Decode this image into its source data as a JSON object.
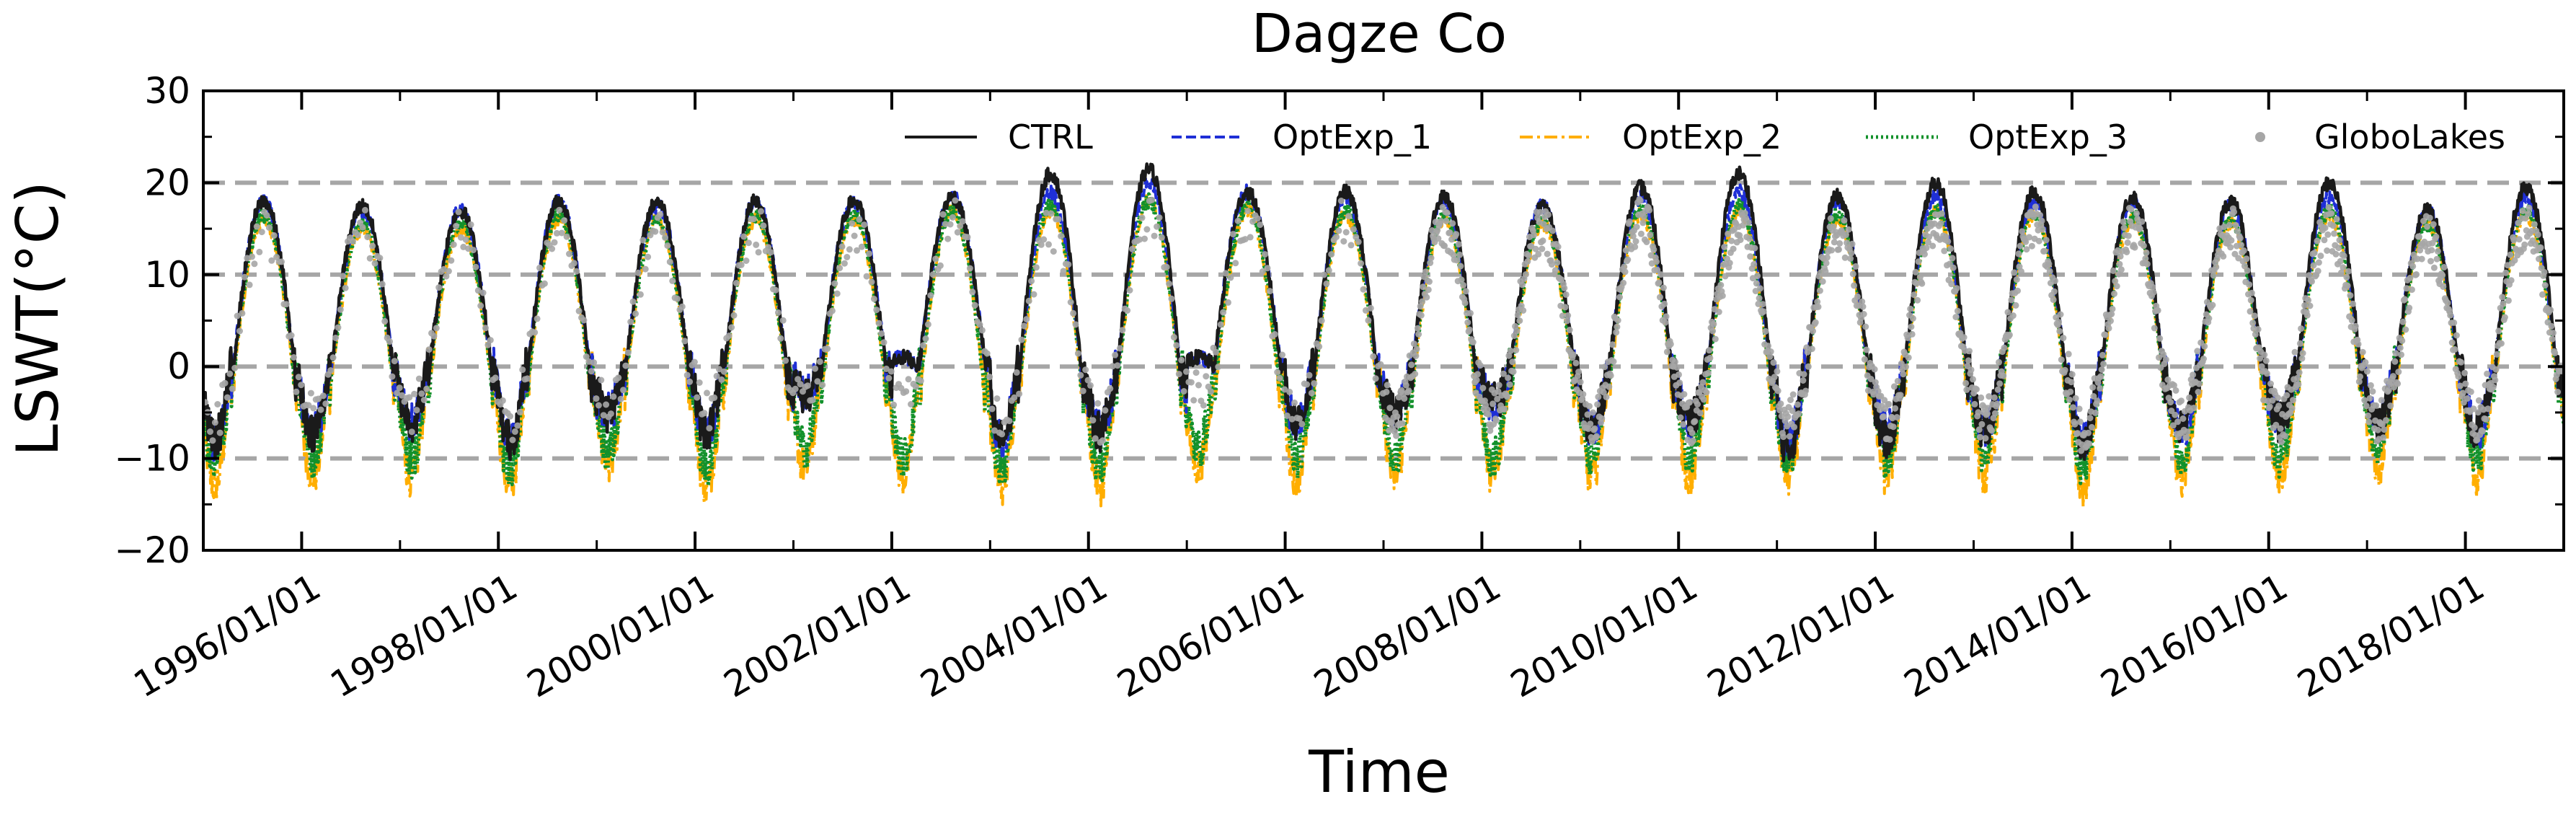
{
  "chart_data": {
    "type": "line",
    "title": "Dagze Co",
    "xlabel": "Time",
    "ylabel": "LSWT(°C)",
    "ylim": [
      -20,
      30
    ],
    "y_ticks": [
      "30",
      "20",
      "10",
      "0",
      "−10",
      "−20"
    ],
    "y_tick_values": [
      30,
      20,
      10,
      0,
      -10,
      -20
    ],
    "x_range_years": [
      1995.0,
      2019.0
    ],
    "x_ticks": [
      "1996/01/01",
      "1998/01/01",
      "2000/01/01",
      "2002/01/01",
      "2004/01/01",
      "2006/01/01",
      "2008/01/01",
      "2010/01/01",
      "2012/01/01",
      "2014/01/01",
      "2016/01/01",
      "2018/01/01"
    ],
    "x_tick_years": [
      1996,
      1998,
      2000,
      2002,
      2004,
      2006,
      2008,
      2010,
      2012,
      2014,
      2016,
      2018
    ],
    "reference_lines": [
      20,
      10,
      0,
      -10
    ],
    "legend": {
      "placement": "top",
      "entries": [
        {
          "label": "CTRL",
          "color": "#1a1a1a",
          "style": "solid"
        },
        {
          "label": "OptExp_1",
          "color": "#1f2fd6",
          "style": "dashed"
        },
        {
          "label": "OptExp_2",
          "color": "#ffae00",
          "style": "dashdot"
        },
        {
          "label": "OptExp_3",
          "color": "#12912b",
          "style": "dotted"
        },
        {
          "label": "GloboLakes",
          "color": "#a6a6a6",
          "style": "marker"
        }
      ]
    },
    "series": [
      {
        "name": "CTRL",
        "annual_peak": [
          18,
          17.5,
          17,
          18,
          18,
          18,
          18,
          18.5,
          21,
          21.5,
          19,
          19,
          18.5,
          17.5,
          19.5,
          21,
          18.5,
          20,
          19,
          18.5,
          18,
          20,
          17,
          19.5
        ],
        "annual_min": [
          -8,
          -7,
          -6,
          -8,
          -5,
          -7,
          -3,
          1,
          -8,
          -7,
          1,
          -6,
          -5,
          -4,
          -7,
          -6,
          -9,
          -8,
          -7,
          -8,
          -7,
          -6,
          -6,
          -7
        ]
      },
      {
        "name": "OptExp_1",
        "annual_peak": [
          18,
          17,
          17,
          18,
          17.5,
          18,
          18,
          18.5,
          19,
          20,
          19,
          18.5,
          18,
          17.5,
          18.5,
          19,
          18,
          18.5,
          18,
          18,
          17.5,
          18.5,
          17,
          18.5
        ],
        "annual_min": [
          -8,
          -7,
          -6,
          -8,
          -5,
          -7,
          -3,
          1,
          -8,
          -7,
          1,
          -6,
          -5,
          -4,
          -7,
          -6,
          -8,
          -7,
          -7,
          -8,
          -7,
          -6,
          -6,
          -7
        ]
      },
      {
        "name": "OptExp_2",
        "annual_peak": [
          16,
          15,
          15,
          16,
          16,
          16,
          16,
          17,
          17,
          18,
          17,
          16.5,
          16,
          15.5,
          16.5,
          17,
          16,
          17,
          16.5,
          16,
          15.5,
          16.5,
          15.5,
          16.5
        ],
        "annual_min": [
          -13,
          -12,
          -12,
          -13,
          -11,
          -13,
          -11,
          -12,
          -13,
          -13,
          -11,
          -12,
          -12,
          -12,
          -12,
          -12,
          -12,
          -12,
          -12,
          -13,
          -12,
          -12,
          -11,
          -12
        ]
      },
      {
        "name": "OptExp_3",
        "annual_peak": [
          16.5,
          15.5,
          15.5,
          16.5,
          16,
          16.5,
          16.5,
          17,
          17.5,
          18,
          17.5,
          17,
          16.5,
          16,
          17,
          17.5,
          16.5,
          17,
          16.5,
          16.5,
          16,
          17,
          15.5,
          17
        ],
        "annual_min": [
          -11,
          -10,
          -10,
          -11,
          -9,
          -11,
          -9,
          -10,
          -11,
          -11,
          -9,
          -10,
          -10,
          -10,
          -10,
          -10,
          -10,
          -10,
          -10,
          -11,
          -10,
          -10,
          -9,
          -10
        ]
      },
      {
        "name": "GloboLakes",
        "annual_peak": [
          15,
          15,
          15,
          15,
          15,
          15,
          15,
          16,
          15,
          16,
          16,
          16,
          15,
          15,
          16,
          15,
          15,
          15,
          15,
          15,
          15,
          15,
          14,
          15
        ],
        "annual_min": [
          -6,
          -5,
          -5,
          -6,
          -4,
          -5,
          -3,
          -3,
          -6,
          -6,
          -3,
          -5,
          -6,
          -5,
          -6,
          -6,
          -6,
          -6,
          -6,
          -7,
          -6,
          -6,
          -6,
          -6
        ]
      }
    ]
  }
}
